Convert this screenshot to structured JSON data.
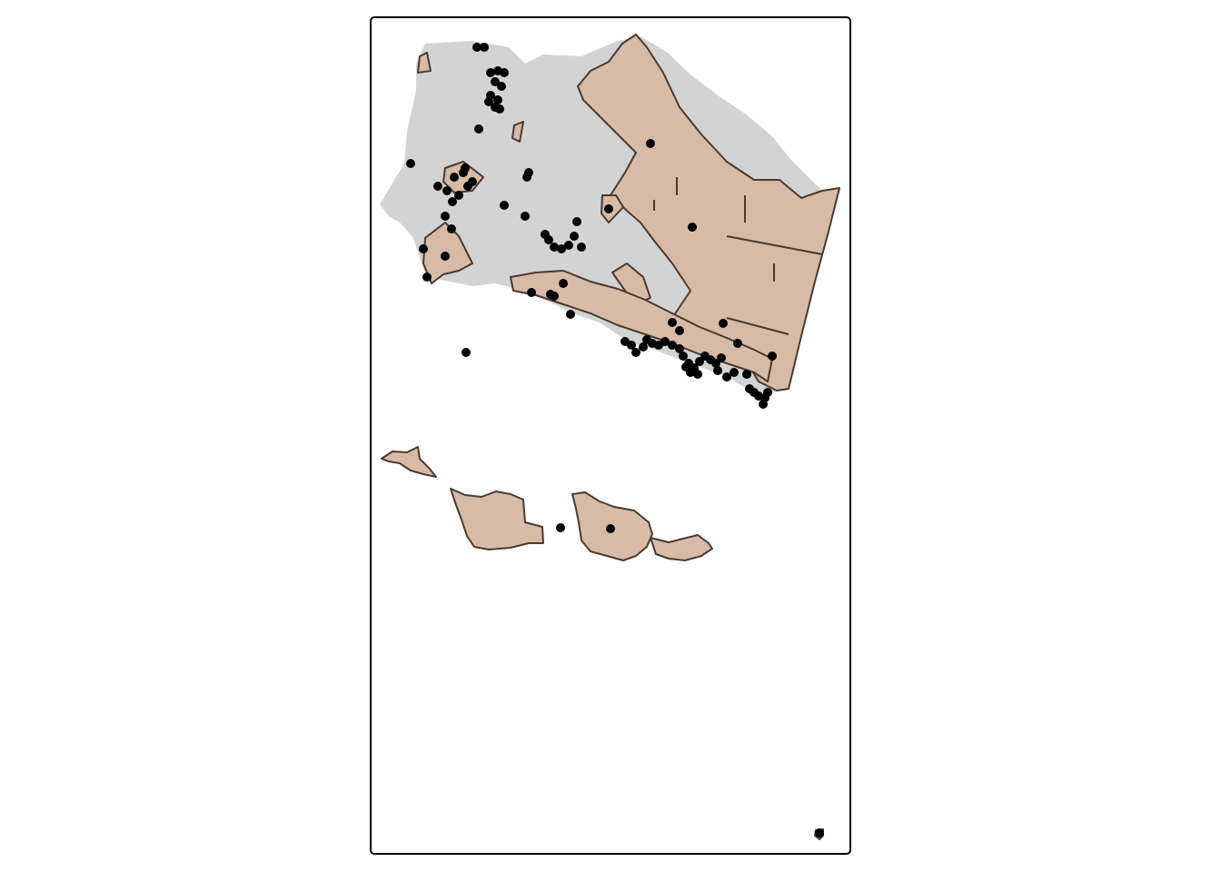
{
  "map": {
    "colors": {
      "background": "#ffffff",
      "frame": "#000000",
      "county_fill": "#d3d3d3",
      "region_fill": "#d7bba7",
      "region_stroke": "#4a3a30",
      "point": "#000000"
    },
    "layers": [
      "county-basemap",
      "public-lands",
      "observation-points"
    ]
  }
}
